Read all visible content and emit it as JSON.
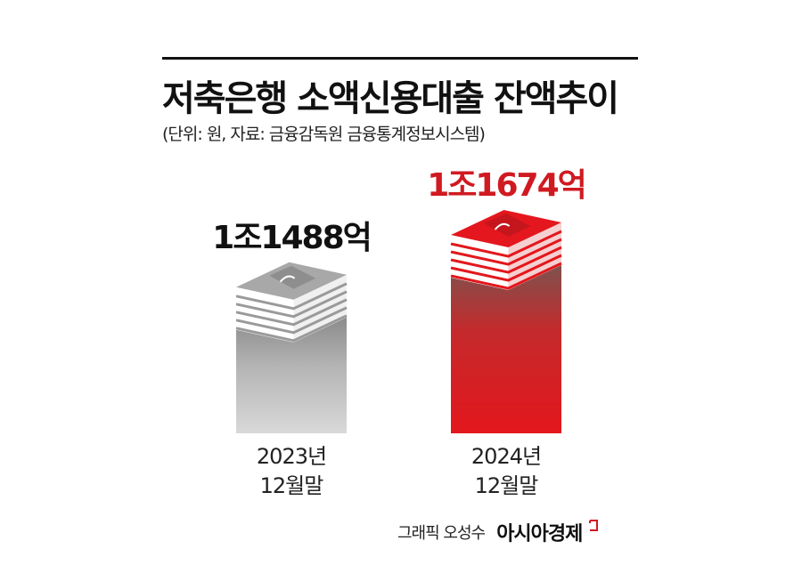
{
  "header": {
    "title": "저축은행 소액신용대출 잔액추이",
    "subtitle": "(단위: 원, 자료: 금융감독원 금융통계정보시스템)"
  },
  "chart_data": {
    "type": "bar",
    "title": "저축은행 소액신용대출 잔액추이",
    "unit": "원",
    "categories": [
      "2023년 12월말",
      "2024년 12월말"
    ],
    "category_lines": [
      [
        "2023년",
        "12월말"
      ],
      [
        "2024년",
        "12월말"
      ]
    ],
    "values": [
      1148800000000,
      1167400000000
    ],
    "value_labels": [
      "1조1488억",
      "1조1674억"
    ],
    "colors": [
      "#a6a6a6",
      "#e3171d"
    ],
    "label_colors": [
      "#111111",
      "#d01a21"
    ]
  },
  "credit": {
    "label": "그래픽 오성수",
    "brand": "아시아경제",
    "brand_color": "#d01a21"
  }
}
